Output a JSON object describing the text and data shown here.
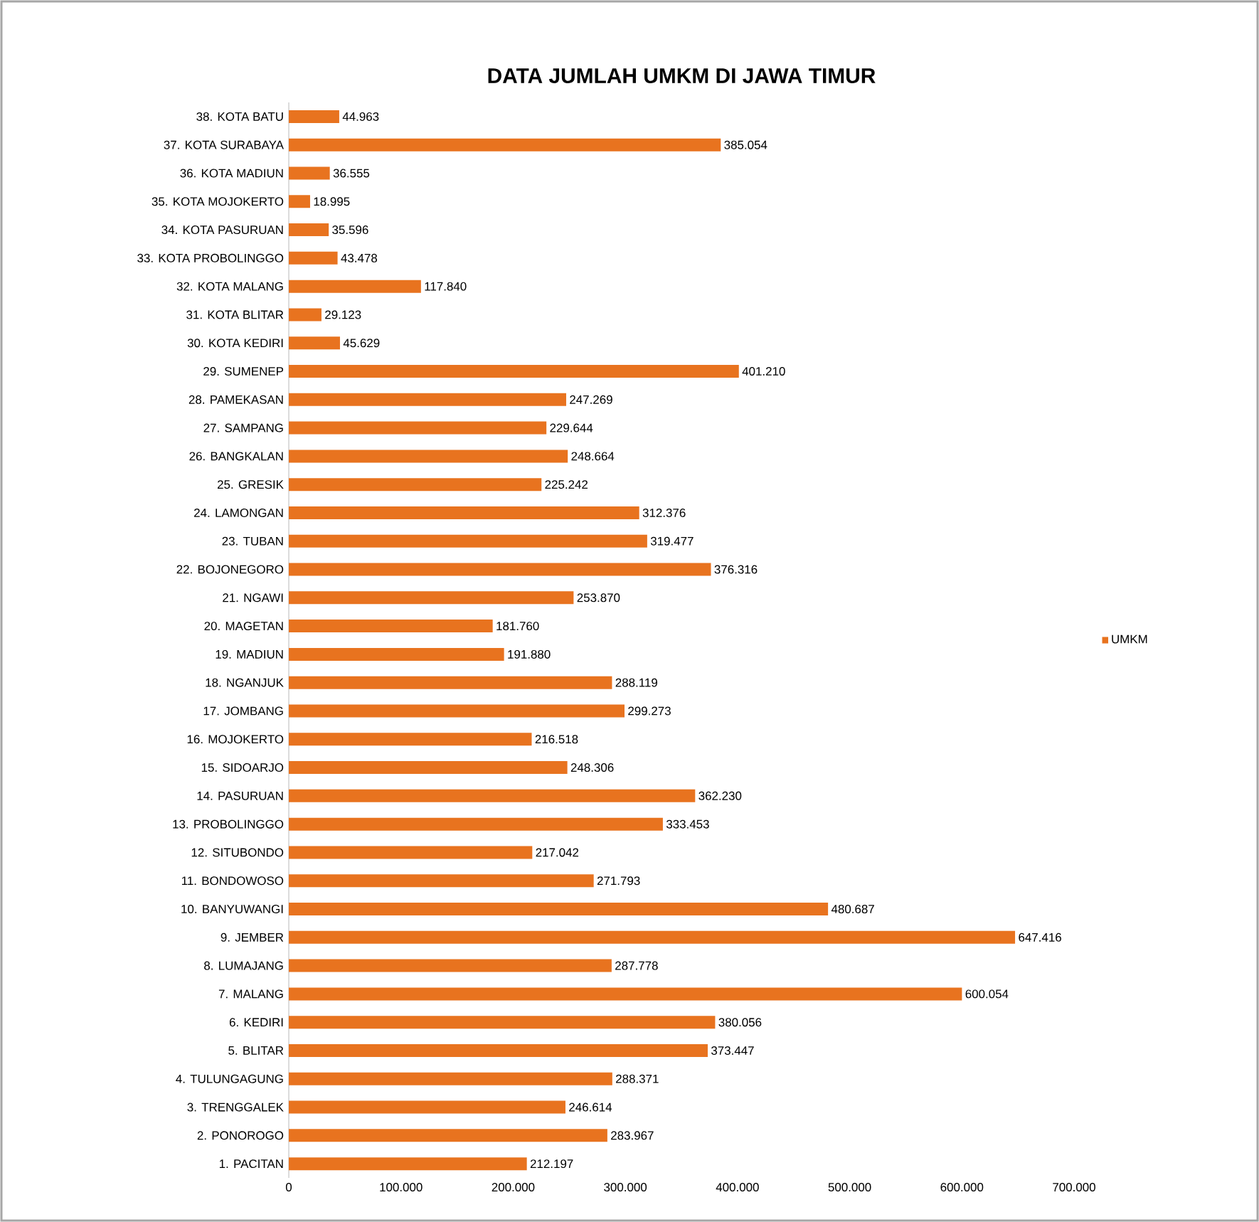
{
  "chart_data": {
    "type": "bar",
    "orientation": "horizontal",
    "title": "DATA JUMLAH UMKM DI JAWA TIMUR",
    "categories": [
      "38. KOTA BATU",
      "37. KOTA SURABAYA",
      "36. KOTA MADIUN",
      "35. KOTA MOJOKERTO",
      "34. KOTA PASURUAN",
      "33. KOTA PROBOLINGGO",
      "32. KOTA MALANG",
      "31. KOTA BLITAR",
      "30. KOTA KEDIRI",
      "29. SUMENEP",
      "28. PAMEKASAN",
      "27. SAMPANG",
      "26. BANGKALAN",
      "25. GRESIK",
      "24. LAMONGAN",
      "23. TUBAN",
      "22. BOJONEGORO",
      "21. NGAWI",
      "20. MAGETAN",
      "19. MADIUN",
      "18. NGANJUK",
      "17. JOMBANG",
      "16. MOJOKERTO",
      "15. SIDOARJO",
      "14. PASURUAN",
      "13. PROBOLINGGO",
      "12. SITUBONDO",
      "11. BONDOWOSO",
      "10. BANYUWANGI",
      "9. JEMBER",
      "8. LUMAJANG",
      "7. MALANG",
      "6. KEDIRI",
      "5. BLITAR",
      "4. TULUNGAGUNG",
      "3. TRENGGALEK",
      "2. PONOROGO",
      "1. PACITAN"
    ],
    "series": [
      {
        "name": "UMKM",
        "color": "#e8731f",
        "values": [
          44963,
          385054,
          36555,
          18995,
          35596,
          43478,
          117840,
          29123,
          45629,
          401210,
          247269,
          229644,
          248664,
          225242,
          312376,
          319477,
          376316,
          253870,
          181760,
          191880,
          288119,
          299273,
          216518,
          248306,
          362230,
          333453,
          217042,
          271793,
          480687,
          647416,
          287778,
          600054,
          380056,
          373447,
          288371,
          246614,
          283967,
          212197
        ],
        "value_labels": [
          "44.963",
          "385.054",
          "36.555",
          "18.995",
          "35.596",
          "43.478",
          "117.840",
          "29.123",
          "45.629",
          "401.210",
          "247.269",
          "229.644",
          "248.664",
          "225.242",
          "312.376",
          "319.477",
          "376.316",
          "253.870",
          "181.760",
          "191.880",
          "288.119",
          "299.273",
          "216.518",
          "248.306",
          "362.230",
          "333.453",
          "217.042",
          "271.793",
          "480.687",
          "647.416",
          "287.778",
          "600.054",
          "380.056",
          "373.447",
          "288.371",
          "246.614",
          "283.967",
          "212.197"
        ]
      }
    ],
    "xlim": [
      0,
      700000
    ],
    "xticks": [
      {
        "value": 0,
        "label": "0"
      },
      {
        "value": 100000,
        "label": "100.000"
      },
      {
        "value": 200000,
        "label": "200.000"
      },
      {
        "value": 300000,
        "label": "300.000"
      },
      {
        "value": 400000,
        "label": "400.000"
      },
      {
        "value": 500000,
        "label": "500.000"
      },
      {
        "value": 600000,
        "label": "600.000"
      },
      {
        "value": 700000,
        "label": "700.000"
      }
    ],
    "legend": "right"
  }
}
